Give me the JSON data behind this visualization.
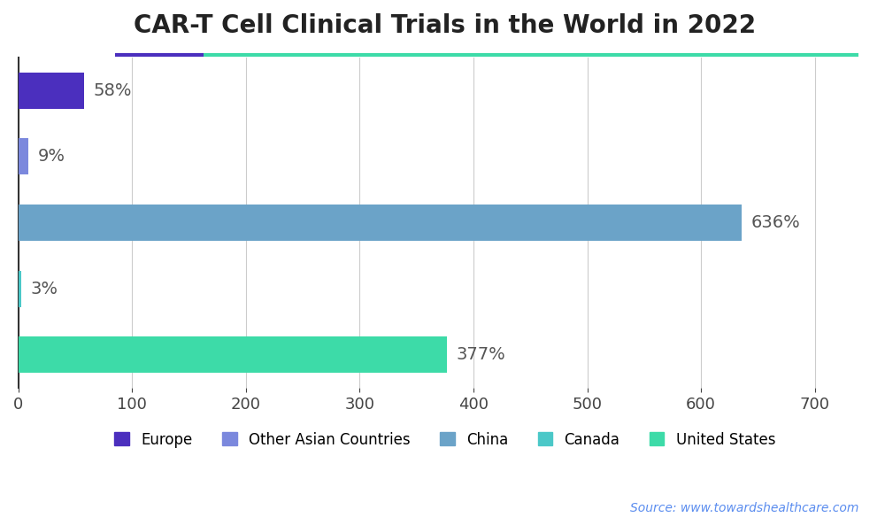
{
  "title": "CAR-T Cell Clinical Trials in the World in 2022",
  "categories": [
    "Europe",
    "Other Asian Countries",
    "China",
    "Canada",
    "United States"
  ],
  "values": [
    58,
    9,
    636,
    3,
    377
  ],
  "labels": [
    "58%",
    "9%",
    "636%",
    "3%",
    "377%"
  ],
  "bar_colors": [
    "#4B2FBE",
    "#7B88DD",
    "#6BA3C8",
    "#4BC8C8",
    "#3DDBA8"
  ],
  "xlim": [
    0,
    750
  ],
  "xticks": [
    0,
    100,
    200,
    300,
    400,
    500,
    600,
    700
  ],
  "title_fontsize": 20,
  "label_fontsize": 14,
  "tick_fontsize": 13,
  "legend_fontsize": 12,
  "background_color": "#ffffff",
  "source_text": "Source: www.towardshealthcare.com",
  "source_color": "#5B8DEF",
  "deco_line1_color": "#4B2FBE",
  "deco_line2_color": "#3DDBA8",
  "bar_height": 0.55,
  "label_color": "#555555"
}
